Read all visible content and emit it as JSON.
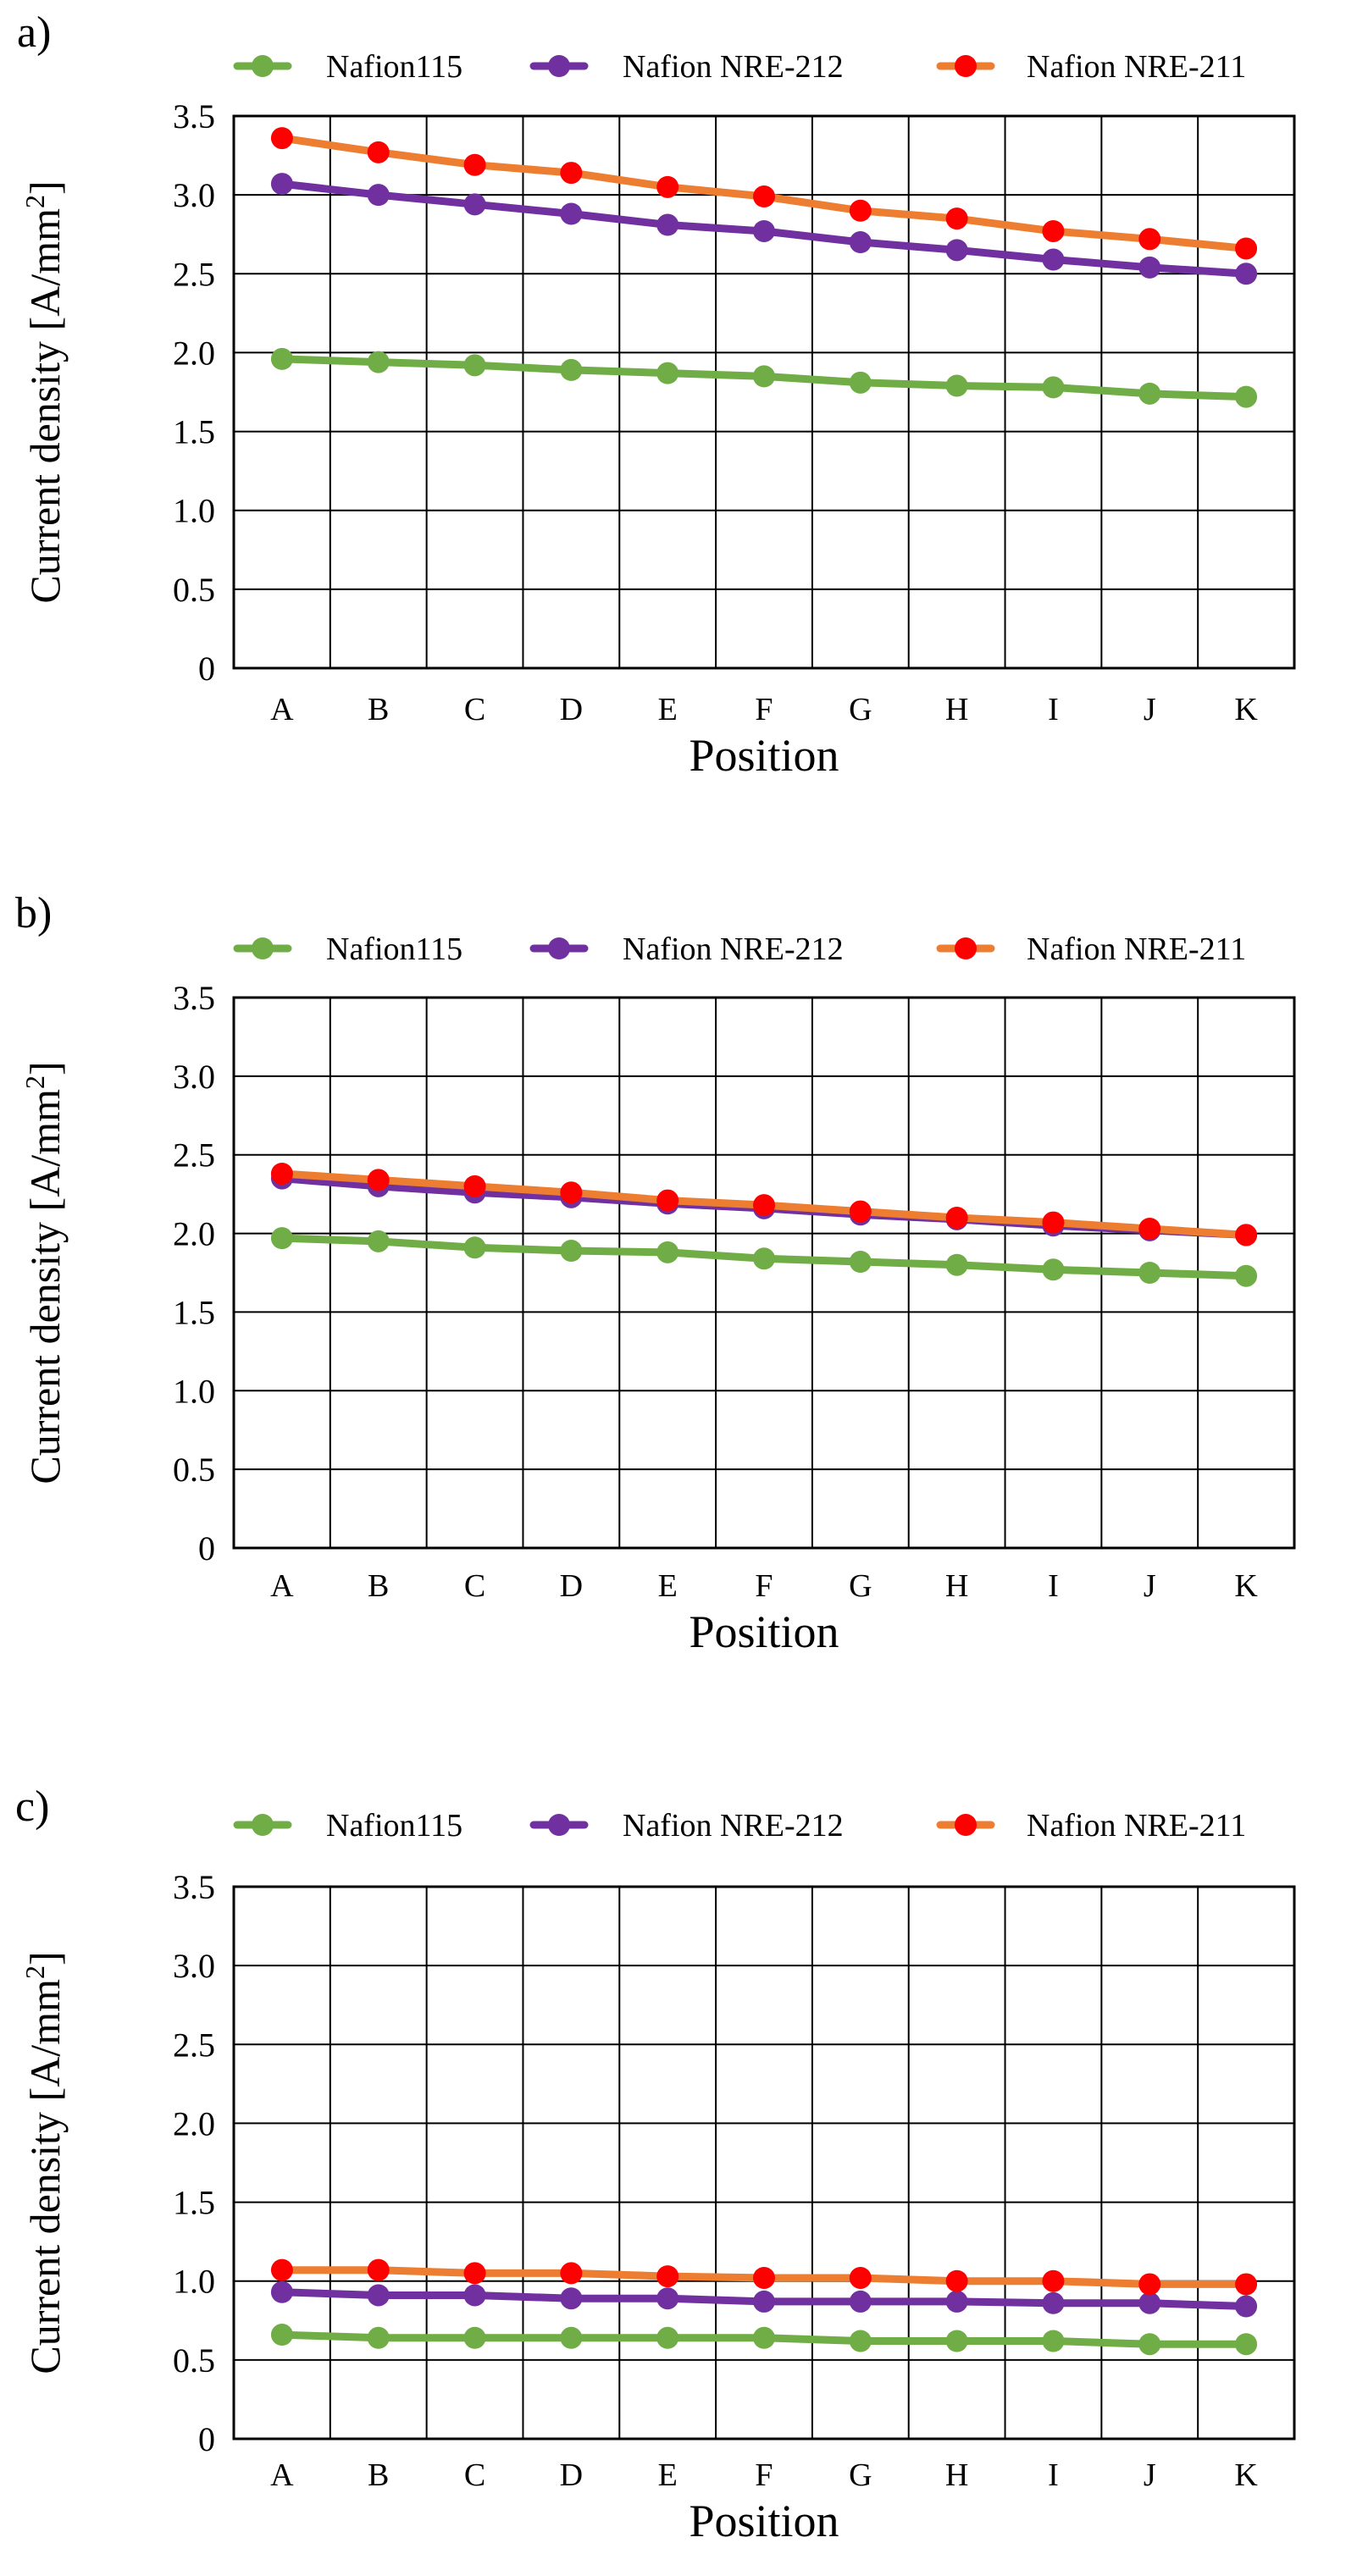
{
  "panels": [
    {
      "chart_data": {
        "type": "line",
        "panel_label": "a)",
        "categories": [
          "A",
          "B",
          "C",
          "D",
          "E",
          "F",
          "G",
          "H",
          "I",
          "J",
          "K"
        ],
        "series": [
          {
            "name": "Nafion115",
            "line_color": "#70ad47",
            "marker_color": "#70ad47",
            "values": [
              1.96,
              1.94,
              1.92,
              1.89,
              1.87,
              1.85,
              1.81,
              1.79,
              1.78,
              1.74,
              1.72
            ]
          },
          {
            "name": "Nafion NRE-212",
            "line_color": "#7030a0",
            "marker_color": "#7030a0",
            "values": [
              3.07,
              3.0,
              2.94,
              2.88,
              2.81,
              2.77,
              2.7,
              2.65,
              2.59,
              2.54,
              2.5
            ]
          },
          {
            "name": "Nafion NRE-211",
            "line_color": "#ed7d31",
            "marker_color": "#ff0000",
            "values": [
              3.36,
              3.27,
              3.19,
              3.14,
              3.05,
              2.99,
              2.9,
              2.85,
              2.77,
              2.72,
              2.66
            ]
          }
        ],
        "yticks": [
          "0",
          "0.5",
          "1.0",
          "1.5",
          "2.0",
          "2.5",
          "3.0",
          "3.5"
        ],
        "ylim": [
          0,
          3.5
        ],
        "xlabel": "Position",
        "ylabel": "Current density [A/mm",
        "ylabel_sup": "2",
        "ylabel_tail": "]",
        "grid": true,
        "legend": "top"
      }
    },
    {
      "chart_data": {
        "type": "line",
        "panel_label": "b)",
        "categories": [
          "A",
          "B",
          "C",
          "D",
          "E",
          "F",
          "G",
          "H",
          "I",
          "J",
          "K"
        ],
        "series": [
          {
            "name": "Nafion115",
            "line_color": "#70ad47",
            "marker_color": "#70ad47",
            "values": [
              1.97,
              1.95,
              1.91,
              1.89,
              1.88,
              1.84,
              1.82,
              1.8,
              1.77,
              1.75,
              1.73
            ]
          },
          {
            "name": "Nafion NRE-212",
            "line_color": "#7030a0",
            "marker_color": "#7030a0",
            "values": [
              2.35,
              2.3,
              2.26,
              2.23,
              2.19,
              2.16,
              2.12,
              2.09,
              2.05,
              2.02,
              1.99
            ]
          },
          {
            "name": "Nafion NRE-211",
            "line_color": "#ed7d31",
            "marker_color": "#ff0000",
            "values": [
              2.38,
              2.34,
              2.3,
              2.26,
              2.21,
              2.18,
              2.14,
              2.1,
              2.07,
              2.03,
              1.99
            ]
          }
        ],
        "yticks": [
          "0",
          "0.5",
          "1.0",
          "1.5",
          "2.0",
          "2.5",
          "3.0",
          "3.5"
        ],
        "ylim": [
          0,
          3.5
        ],
        "xlabel": "Position",
        "ylabel": "Current density [A/mm",
        "ylabel_sup": "2",
        "ylabel_tail": "]",
        "grid": true,
        "legend": "top"
      }
    },
    {
      "chart_data": {
        "type": "line",
        "panel_label": "c)",
        "categories": [
          "A",
          "B",
          "C",
          "D",
          "E",
          "F",
          "G",
          "H",
          "I",
          "J",
          "K"
        ],
        "series": [
          {
            "name": "Nafion115",
            "line_color": "#70ad47",
            "marker_color": "#70ad47",
            "values": [
              0.66,
              0.64,
              0.64,
              0.64,
              0.64,
              0.64,
              0.62,
              0.62,
              0.62,
              0.6,
              0.6
            ]
          },
          {
            "name": "Nafion NRE-212",
            "line_color": "#7030a0",
            "marker_color": "#7030a0",
            "values": [
              0.93,
              0.91,
              0.91,
              0.89,
              0.89,
              0.87,
              0.87,
              0.87,
              0.86,
              0.86,
              0.84
            ]
          },
          {
            "name": "Nafion NRE-211",
            "line_color": "#ed7d31",
            "marker_color": "#ff0000",
            "values": [
              1.07,
              1.07,
              1.05,
              1.05,
              1.03,
              1.02,
              1.02,
              1.0,
              1.0,
              0.98,
              0.98
            ]
          }
        ],
        "yticks": [
          "0",
          "0.5",
          "1.0",
          "1.5",
          "2.0",
          "2.5",
          "3.0",
          "3.5"
        ],
        "ylim": [
          0,
          3.5
        ],
        "xlabel": "Position",
        "ylabel": "Current density [A/mm",
        "ylabel_sup": "2",
        "ylabel_tail": "]",
        "grid": true,
        "legend": "top"
      }
    }
  ]
}
